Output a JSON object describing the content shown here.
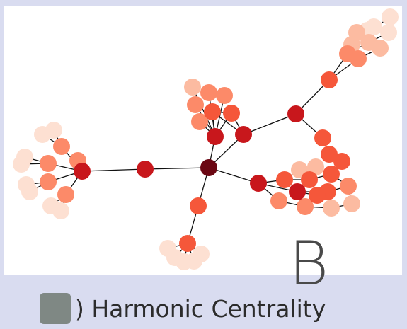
{
  "figure": {
    "panel_letter": "B",
    "caption_text": ") Harmonic Centrality",
    "swatch_color": "#7f8884"
  },
  "graph": {
    "node_colors": {
      "hub": "#6b0713",
      "high": "#c8171c",
      "mid_high": "#f5573a",
      "mid": "#fc8a69",
      "low": "#fcbba1",
      "lowest": "#fde0d2"
    },
    "edge_color": "#111111"
  }
}
